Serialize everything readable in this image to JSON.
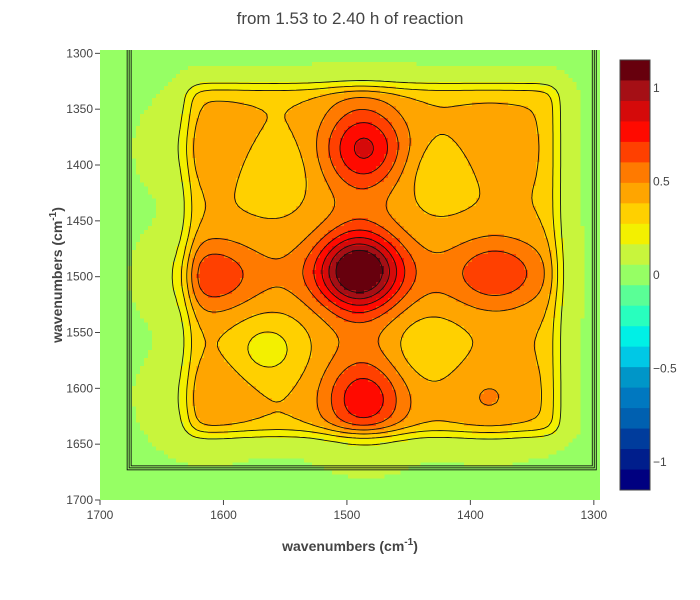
{
  "chart_data": {
    "type": "heatmap",
    "subtype": "2D correlation contour map",
    "title": "from 1.53 to 2.40 h of reaction",
    "xlabel": {
      "text": "wavenumbers (cm",
      "sup": "-1",
      "suffix": ")"
    },
    "ylabel": {
      "text": "wavenumbers (cm",
      "sup": "-1",
      "suffix": ")"
    },
    "x_range": [
      1700,
      1295
    ],
    "y_range": [
      1297,
      1700
    ],
    "x_reversed": true,
    "y_reversed": true,
    "x_ticks": [
      1700,
      1600,
      1500,
      1400,
      1300
    ],
    "y_ticks": [
      1300,
      1350,
      1400,
      1450,
      1500,
      1550,
      1600,
      1650,
      1700
    ],
    "colorbar": {
      "range": [
        -1.15,
        1.15
      ],
      "ticks": [
        1,
        0.5,
        0,
        -0.5,
        -1
      ],
      "tick_labels": [
        "1",
        "0.5",
        "0",
        "−0.5",
        "−1"
      ],
      "colors": [
        "#67000d",
        "#a50f15",
        "#d50a0a",
        "#ff0a00",
        "#ff4000",
        "#ff7a00",
        "#ffa500",
        "#ffd000",
        "#f3f000",
        "#c8f53c",
        "#96ff64",
        "#5aff96",
        "#28ffbe",
        "#00f0e6",
        "#00c8e6",
        "#0096c8",
        "#0078c0",
        "#0060b0",
        "#003c9c",
        "#001e8c",
        "#000080"
      ]
    },
    "peaks": [
      {
        "x": 1490,
        "y": 1495,
        "value": 1.05
      },
      {
        "x": 1485,
        "y": 1385,
        "value": 0.75
      },
      {
        "x": 1485,
        "y": 1610,
        "value": 0.7
      },
      {
        "x": 1610,
        "y": 1500,
        "value": 0.6
      },
      {
        "x": 1380,
        "y": 1497,
        "value": 0.6
      },
      {
        "x": 1612,
        "y": 1385,
        "value": 0.5
      },
      {
        "x": 1612,
        "y": 1608,
        "value": 0.5
      },
      {
        "x": 1385,
        "y": 1608,
        "value": 0.5
      },
      {
        "x": 1385,
        "y": 1385,
        "value": 0.45
      }
    ],
    "background_value": 0.05,
    "plateau_value": 0.38,
    "dips": [
      {
        "x": 1560,
        "y": 1405,
        "value": 0.28
      },
      {
        "x": 1425,
        "y": 1405,
        "value": 0.28
      },
      {
        "x": 1565,
        "y": 1565,
        "value": 0.22
      },
      {
        "x": 1435,
        "y": 1565,
        "value": 0.28
      }
    ]
  }
}
